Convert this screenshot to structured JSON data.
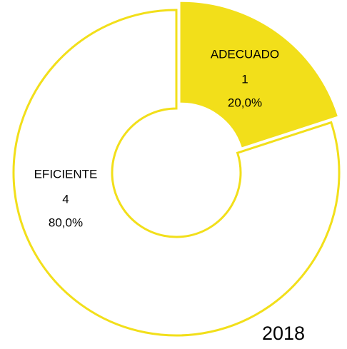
{
  "chart_data": {
    "type": "donut",
    "title": "2018",
    "categories": [
      "ADECUADO",
      "EFICIENTE"
    ],
    "values": [
      1,
      4
    ],
    "percentages": [
      20,
      80
    ],
    "percentage_labels": [
      "20,0%",
      "80,0%"
    ],
    "colors": [
      "#f2df1a",
      "#ffffff"
    ],
    "stroke": "#f2df1a"
  }
}
